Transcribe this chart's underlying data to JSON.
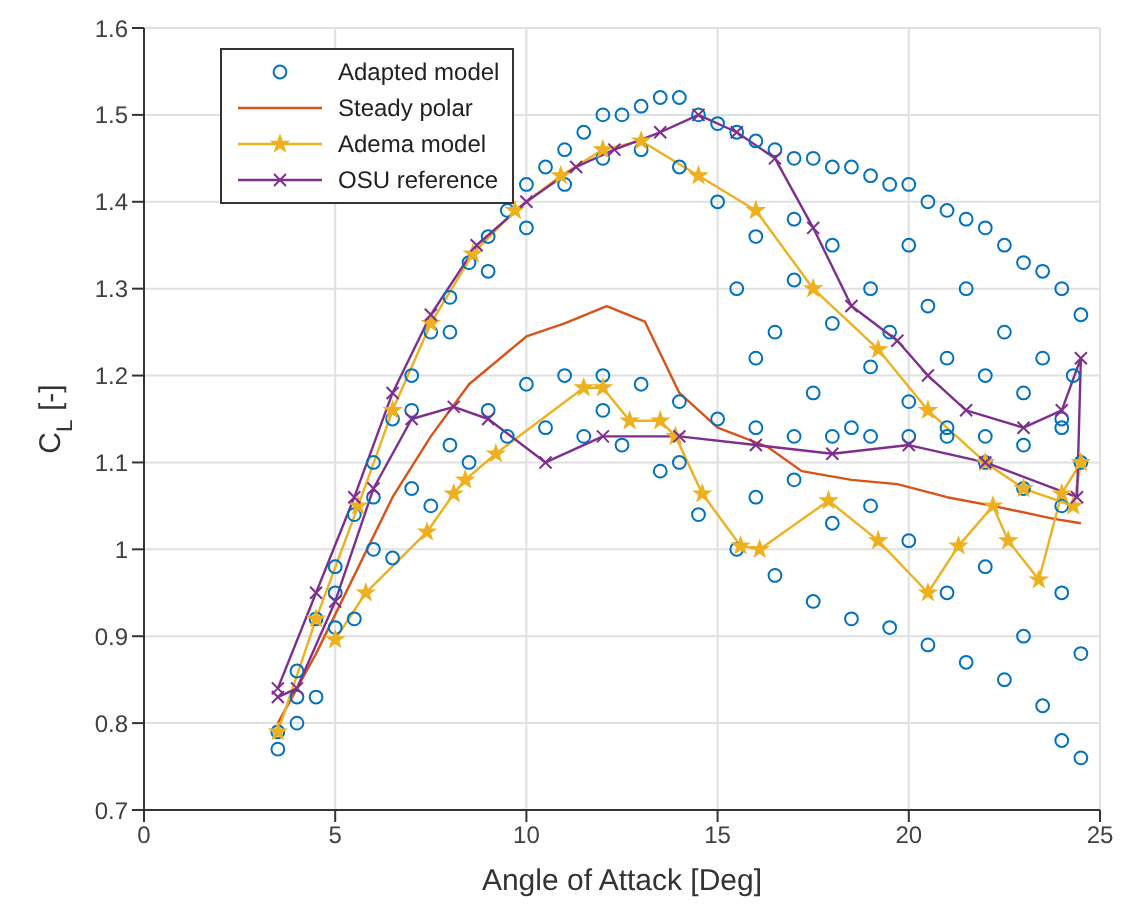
{
  "chart_data": {
    "type": "line",
    "xlabel": "Angle of Attack [Deg]",
    "ylabel": "C$_{L}$ [-]",
    "xlim": [
      0,
      25
    ],
    "ylim": [
      0.7,
      1.6
    ],
    "xticks": [
      0,
      5,
      10,
      15,
      20,
      25
    ],
    "yticks": [
      0.7,
      0.8,
      0.9,
      1,
      1.1,
      1.2,
      1.3,
      1.4,
      1.5,
      1.6
    ],
    "grid": true,
    "legend": "top left",
    "series": [
      {
        "name": "Adapted model",
        "type": "scatter",
        "marker": "circle",
        "color": "#0072bd",
        "x": [
          3.5,
          4,
          4.5,
          5,
          5.5,
          6,
          6.5,
          7,
          7.5,
          8,
          8.5,
          9,
          9.5,
          10,
          10.5,
          11,
          11.5,
          12,
          12.5,
          13,
          13.5,
          14,
          14.5,
          15,
          15.5,
          16,
          16.5,
          17,
          17.5,
          18,
          18.5,
          19,
          19.5,
          20,
          20.5,
          21,
          21.5,
          22,
          22.5,
          23,
          23.5,
          24,
          24.5,
          4,
          5,
          6,
          7,
          8,
          9,
          10,
          11,
          12,
          13,
          14,
          15,
          16,
          17,
          18,
          19,
          20,
          21,
          22,
          23,
          24,
          15.5,
          16,
          16.5,
          17,
          17.5,
          18,
          18.5,
          19,
          19.5,
          20,
          20.5,
          21,
          21.5,
          22,
          22.5,
          23,
          23.5,
          24,
          24.3,
          24.5,
          4,
          5,
          6,
          7,
          8,
          9,
          10,
          11,
          12,
          13,
          14,
          15,
          16,
          17,
          18,
          19,
          20,
          21,
          22,
          23,
          24,
          3.5,
          4.5,
          5.5,
          6.5,
          7.5,
          8.5,
          9.5,
          10.5,
          11.5,
          12.5,
          13.5,
          14.5,
          15.5,
          16.5,
          17.5,
          18.5,
          19.5,
          20.5,
          21.5,
          22.5,
          23.5,
          24,
          24.5,
          12,
          14,
          16,
          18,
          20,
          22,
          24,
          24.5,
          23,
          21,
          19,
          17
        ],
        "values": [
          0.79,
          0.86,
          0.92,
          0.98,
          1.04,
          1.1,
          1.15,
          1.2,
          1.25,
          1.29,
          1.33,
          1.36,
          1.39,
          1.42,
          1.44,
          1.46,
          1.48,
          1.5,
          1.5,
          1.51,
          1.52,
          1.52,
          1.5,
          1.49,
          1.48,
          1.47,
          1.46,
          1.45,
          1.45,
          1.44,
          1.44,
          1.43,
          1.42,
          1.42,
          1.4,
          1.39,
          1.38,
          1.37,
          1.35,
          1.33,
          1.32,
          1.3,
          1.27,
          0.83,
          0.95,
          1.06,
          1.16,
          1.25,
          1.32,
          1.37,
          1.42,
          1.45,
          1.46,
          1.44,
          1.4,
          1.36,
          1.31,
          1.26,
          1.21,
          1.17,
          1.13,
          1.1,
          1.07,
          1.05,
          1.3,
          1.22,
          1.25,
          1.38,
          1.18,
          1.35,
          1.14,
          1.3,
          1.25,
          1.35,
          1.28,
          1.22,
          1.3,
          1.2,
          1.25,
          1.18,
          1.22,
          1.15,
          1.2,
          1.1,
          0.8,
          0.91,
          1,
          1.07,
          1.12,
          1.16,
          1.19,
          1.2,
          1.2,
          1.19,
          1.17,
          1.15,
          1.14,
          1.13,
          1.13,
          1.13,
          1.13,
          1.14,
          1.13,
          1.12,
          1.14,
          0.77,
          0.83,
          0.92,
          0.99,
          1.05,
          1.1,
          1.13,
          1.14,
          1.13,
          1.12,
          1.09,
          1.04,
          1,
          0.97,
          0.94,
          0.92,
          0.91,
          0.89,
          0.87,
          0.85,
          0.82,
          0.78,
          0.76,
          1.16,
          1.1,
          1.06,
          1.03,
          1.01,
          0.98,
          0.95,
          0.88,
          0.9,
          0.95,
          1.05,
          1.08
        ]
      },
      {
        "name": "Steady polar",
        "type": "line",
        "marker": "none",
        "color": "#d95319",
        "x": [
          3.5,
          4.5,
          5.5,
          6.5,
          7.5,
          8.5,
          10,
          11,
          12.1,
          13.1,
          14,
          15,
          16.3,
          17.2,
          18.5,
          19.7,
          21,
          22.2,
          23.8,
          24.5
        ],
        "values": [
          0.8,
          0.88,
          0.97,
          1.06,
          1.13,
          1.19,
          1.245,
          1.26,
          1.28,
          1.262,
          1.18,
          1.14,
          1.118,
          1.09,
          1.08,
          1.075,
          1.06,
          1.05,
          1.035,
          1.03
        ]
      },
      {
        "name": "Adema model",
        "type": "line",
        "marker": "star",
        "color": "#edb120",
        "x": [
          3.5,
          4.5,
          5.6,
          6.5,
          7.5,
          8.6,
          9.7,
          10.9,
          12,
          13,
          14.5,
          16,
          17.5,
          19.2,
          20.5,
          22,
          23,
          24.3,
          24.5,
          24,
          23.4,
          22.6,
          22.2,
          21.3,
          20.5,
          19.2,
          17.9,
          16.1,
          15.6,
          14.6,
          13.9,
          13.5,
          12.7,
          12,
          11.5,
          9.2,
          8.4,
          8.1,
          7.4,
          5.8,
          5
        ],
        "values": [
          0.79,
          0.92,
          1.05,
          1.16,
          1.26,
          1.34,
          1.39,
          1.43,
          1.46,
          1.47,
          1.43,
          1.39,
          1.3,
          1.23,
          1.16,
          1.1,
          1.07,
          1.05,
          1.1,
          1.064,
          0.965,
          1.01,
          1.05,
          1.004,
          0.95,
          1.01,
          1.056,
          1,
          1.004,
          1.064,
          1.13,
          1.148,
          1.148,
          1.186,
          1.186,
          1.11,
          1.08,
          1.064,
          1.02,
          0.95,
          0.896
        ]
      },
      {
        "name": "OSU reference",
        "type": "line",
        "marker": "cross",
        "color": "#7e2f8e",
        "x": [
          3.5,
          4.5,
          5.5,
          6.5,
          7.5,
          8.7,
          10,
          11.3,
          12.3,
          13.5,
          14.5,
          15.5,
          16.5,
          17.5,
          18.5,
          19.7,
          20.5,
          21.5,
          23,
          24,
          24.5,
          24.4,
          22,
          20,
          18,
          16,
          14,
          12,
          10.5,
          9,
          8.1,
          7,
          6,
          5,
          4,
          3.5
        ],
        "values": [
          0.84,
          0.95,
          1.06,
          1.18,
          1.27,
          1.35,
          1.4,
          1.44,
          1.46,
          1.48,
          1.5,
          1.48,
          1.45,
          1.37,
          1.28,
          1.24,
          1.2,
          1.16,
          1.14,
          1.16,
          1.22,
          1.06,
          1.1,
          1.12,
          1.11,
          1.12,
          1.13,
          1.13,
          1.1,
          1.15,
          1.164,
          1.15,
          1.07,
          0.94,
          0.84,
          0.83
        ]
      }
    ]
  }
}
